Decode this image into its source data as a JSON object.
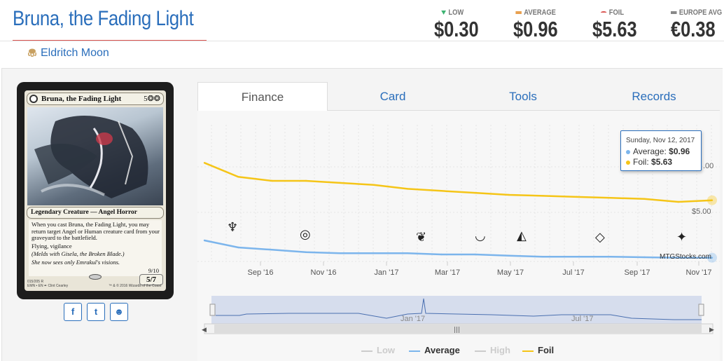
{
  "header": {
    "title": "Bruna, the Fading Light",
    "prices": [
      {
        "label": "LOW",
        "value": "$0.30",
        "marker": "triangle-down",
        "color": "#3cb371"
      },
      {
        "label": "AVERAGE",
        "value": "$0.96",
        "marker": "bar",
        "color": "#e8a050"
      },
      {
        "label": "FOIL",
        "value": "$5.63",
        "marker": "curve",
        "color": "#d9534f"
      },
      {
        "label": "EUROPE AVG",
        "value": "€0.38",
        "marker": "bar",
        "color": "#888888"
      }
    ]
  },
  "set": {
    "icon": "eldritch-moon-icon",
    "name": "Eldritch Moon"
  },
  "card": {
    "name": "Bruna, the Fading Light",
    "cost": "5❂❂",
    "type": "Legendary Creature — Angel Horror",
    "text1": "When you cast Bruna, the Fading Light, you may return target Angel or Human creature card from your graveyard to the battlefield.",
    "text2": "Flying, vigilance",
    "text3": "(Melds with Gisela, the Broken Blade.)",
    "flavor": "She now sees only Emrakul's visions.",
    "meld": "9/10",
    "pt": "5/7",
    "footer1": "015/205 R",
    "footer2": "EMN • EN ✒ Clint Cearley",
    "footer3": "™ & © 2016 Wizards of the Coast"
  },
  "social": [
    {
      "icon": "facebook-icon",
      "glyph": "f"
    },
    {
      "icon": "twitter-icon",
      "glyph": "t"
    },
    {
      "icon": "reddit-icon",
      "glyph": "☻"
    }
  ],
  "tabs": [
    "Finance",
    "Card",
    "Tools",
    "Records"
  ],
  "active_tab": "Finance",
  "chart": {
    "watermark": "MTGStocks.com",
    "y_tick_labels": [
      "$5.00",
      ".00"
    ],
    "x_tick_labels": [
      "Sep '16",
      "Nov '16",
      "Jan '17",
      "Mar '17",
      "May '17",
      "Jul '17",
      "Sep '17",
      "Nov '17"
    ],
    "navigator_labels": [
      "Jan '17",
      "Jul '17"
    ],
    "tooltip": {
      "date": "Sunday, Nov 12, 2017",
      "average_label": "Average:",
      "average_value": "$0.96",
      "foil_label": "Foil:",
      "foil_value": "$5.63"
    },
    "legend": [
      {
        "name": "Low",
        "color": "#cccccc",
        "enabled": false
      },
      {
        "name": "Average",
        "color": "#7cb5ec",
        "enabled": true
      },
      {
        "name": "High",
        "color": "#cccccc",
        "enabled": false
      },
      {
        "name": "Foil",
        "color": "#f5c518",
        "enabled": true
      }
    ],
    "colors": {
      "average": "#7cb5ec",
      "foil": "#f5c518",
      "navigator_fill": "#c8d2e8"
    }
  },
  "chart_data": {
    "type": "line",
    "x": [
      "Aug '16",
      "Sep '16",
      "Oct '16",
      "Nov '16",
      "Dec '16",
      "Jan '17",
      "Feb '17",
      "Mar '17",
      "Apr '17",
      "May '17",
      "Jun '17",
      "Jul '17",
      "Aug '17",
      "Sep '17",
      "Oct '17",
      "Nov '17"
    ],
    "series": [
      {
        "name": "Average",
        "values": [
          1.7,
          1.4,
          1.3,
          1.2,
          1.15,
          1.15,
          1.15,
          1.1,
          1.1,
          1.05,
          1.0,
          1.0,
          1.0,
          0.98,
          0.96,
          0.96
        ]
      },
      {
        "name": "Foil",
        "values": [
          7.5,
          6.8,
          6.6,
          6.6,
          6.5,
          6.4,
          6.2,
          6.1,
          6.0,
          5.9,
          5.85,
          5.8,
          5.75,
          5.7,
          5.55,
          5.63
        ]
      }
    ],
    "xlabel": "",
    "ylabel": "",
    "grid": true,
    "legend_position": "bottom"
  }
}
